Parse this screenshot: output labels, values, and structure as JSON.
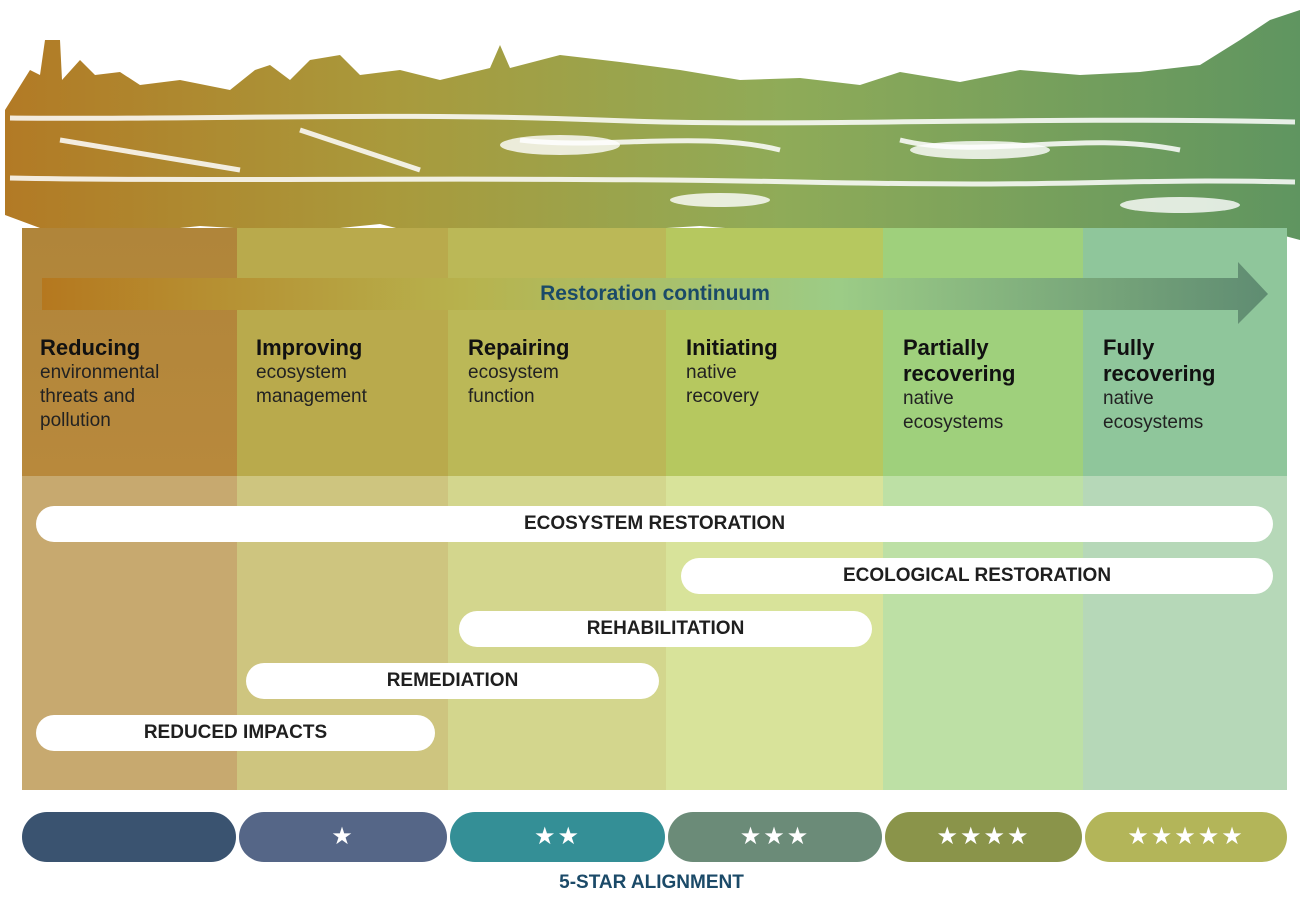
{
  "continuum_label": "Restoration continuum",
  "stages": [
    {
      "title": "Reducing",
      "description": "environmental threats and pollution"
    },
    {
      "title": "Improving",
      "description": "ecosystem management"
    },
    {
      "title": "Repairing",
      "description": "ecosystem function"
    },
    {
      "title": "Initiating",
      "description": "native recovery"
    },
    {
      "title": "Partially recovering",
      "description": "native ecosystems"
    },
    {
      "title": "Fully recovering",
      "description": "native ecosystems"
    }
  ],
  "activities": [
    "ECOSYSTEM RESTORATION",
    "ECOLOGICAL RESTORATION",
    "REHABILITATION",
    "REMEDIATION",
    "REDUCED IMPACTS"
  ],
  "star_ratings": [
    "★",
    "★★",
    "★★★",
    "★★★★",
    "★★★★★"
  ],
  "alignment_label": "5-STAR ALIGNMENT"
}
